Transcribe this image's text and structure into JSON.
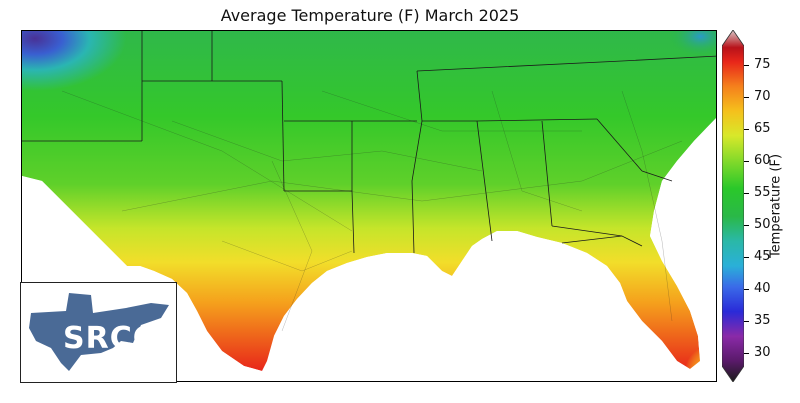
{
  "title": "Average Temperature (F) March 2025",
  "colorbar": {
    "label": "Temperature (F)",
    "ticks": [
      "30",
      "35",
      "40",
      "45",
      "50",
      "55",
      "60",
      "65",
      "70",
      "75"
    ],
    "min": 28,
    "max": 78
  },
  "logo": {
    "text": "SRCC"
  },
  "colors": {
    "cold_purple": "#5a2a9a",
    "blue": "#3060d8",
    "teal": "#2bb5b8",
    "green": "#2ec82a",
    "yellow_green": "#b9e82a",
    "yellow": "#f2e22a",
    "orange": "#f59a1c",
    "red": "#e8261a",
    "logo_blue": "#4a6a96"
  }
}
